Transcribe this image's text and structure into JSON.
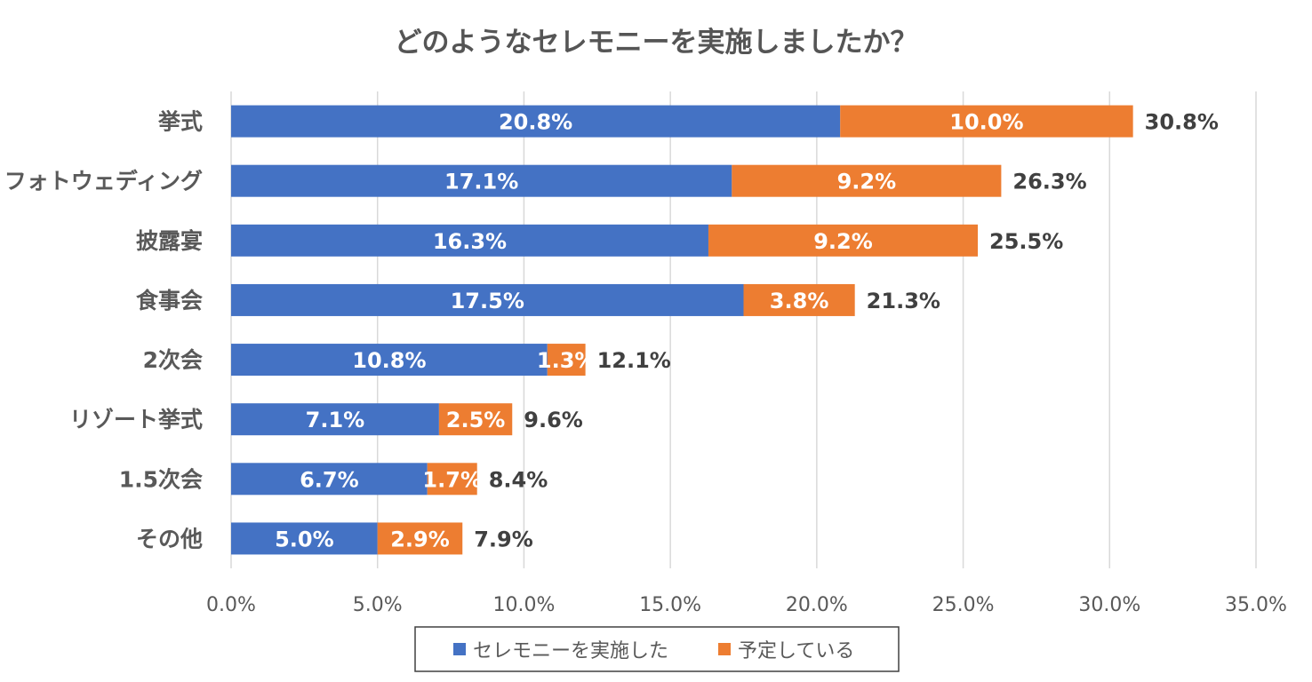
{
  "chart_data": {
    "type": "bar",
    "orientation": "horizontal",
    "stacked": true,
    "title": "どのようなセレモニーを実施しましたか？",
    "categories": [
      "挙式",
      "フォトウェディング",
      "披露宴",
      "食事会",
      "2次会",
      "リゾート挙式",
      "1.5次会",
      "その他"
    ],
    "series": [
      {
        "name": "セレモニーを実施した",
        "color": "#4472C4",
        "values": [
          20.8,
          17.1,
          16.3,
          17.5,
          10.8,
          7.1,
          6.7,
          5.0
        ],
        "labels": [
          "20.8%",
          "17.1%",
          "16.3%",
          "17.5%",
          "10.8%",
          "7.1%",
          "6.7%",
          "5.0%"
        ]
      },
      {
        "name": "予定している",
        "color": "#ED7D31",
        "values": [
          10.0,
          9.2,
          9.2,
          3.8,
          1.3,
          2.5,
          1.7,
          2.9
        ],
        "labels": [
          "10.0%",
          "9.2%",
          "9.2%",
          "3.8%",
          "1.3%",
          "2.5%",
          "1.7%",
          "2.9%"
        ]
      }
    ],
    "totals": [
      "30.8%",
      "26.3%",
      "25.5%",
      "21.3%",
      "12.1%",
      "9.6%",
      "8.4%",
      "7.9%"
    ],
    "total_values": [
      30.8,
      26.3,
      25.5,
      21.3,
      12.1,
      9.6,
      8.4,
      7.9
    ],
    "xlim": [
      0,
      35
    ],
    "xticks": [
      0,
      5,
      10,
      15,
      20,
      25,
      30,
      35
    ],
    "xtick_labels": [
      "0.0%",
      "5.0%",
      "10.0%",
      "15.0%",
      "20.0%",
      "25.0%",
      "30.0%",
      "35.0%"
    ],
    "grid": true,
    "legend_position": "bottom"
  }
}
